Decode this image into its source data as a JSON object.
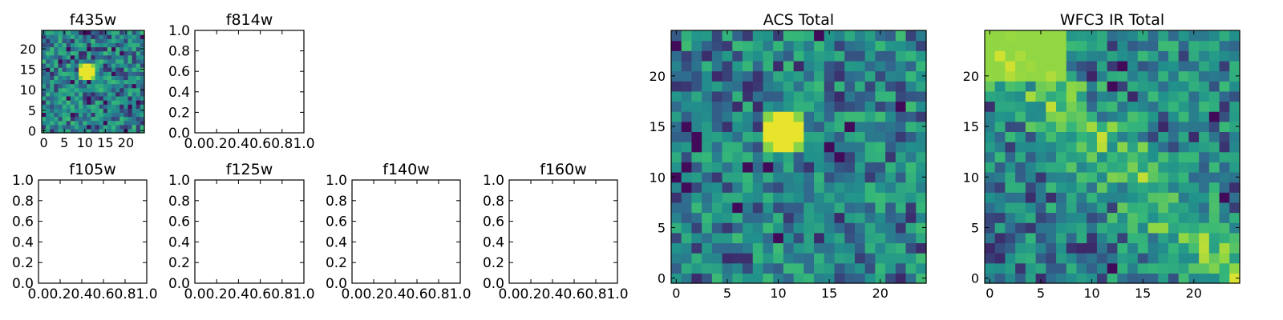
{
  "colormap": [
    "#440154",
    "#31688e",
    "#21918c",
    "#35b779",
    "#90d743",
    "#fde725"
  ],
  "chart_data": [
    {
      "type": "heatmap",
      "title": "f435w",
      "xticks": [
        0,
        5,
        10,
        15,
        20
      ],
      "yticks": [
        0,
        5,
        10,
        15,
        20
      ],
      "grid_size": 25,
      "pattern": "noise-with-central-peak",
      "peak": [
        10.5,
        14.5
      ]
    },
    {
      "type": "empty",
      "title": "f814w",
      "xticks": [
        "0.0",
        "0.2",
        "0.4",
        "0.6",
        "0.8",
        "1.0"
      ],
      "yticks": [
        "0.0",
        "0.2",
        "0.4",
        "0.6",
        "0.8",
        "1.0"
      ]
    },
    {
      "type": "empty",
      "title": "f105w",
      "xticks": [
        "0.0",
        "0.2",
        "0.4",
        "0.6",
        "0.8",
        "1.0"
      ],
      "yticks": [
        "0.0",
        "0.2",
        "0.4",
        "0.6",
        "0.8",
        "1.0"
      ]
    },
    {
      "type": "empty",
      "title": "f125w",
      "xticks": [
        "0.0",
        "0.2",
        "0.4",
        "0.6",
        "0.8",
        "1.0"
      ],
      "yticks": [
        "0.0",
        "0.2",
        "0.4",
        "0.6",
        "0.8",
        "1.0"
      ]
    },
    {
      "type": "empty",
      "title": "f140w",
      "xticks": [
        "0.0",
        "0.2",
        "0.4",
        "0.6",
        "0.8",
        "1.0"
      ],
      "yticks": [
        "0.0",
        "0.2",
        "0.4",
        "0.6",
        "0.8",
        "1.0"
      ]
    },
    {
      "type": "empty",
      "title": "f160w",
      "xticks": [
        "0.0",
        "0.2",
        "0.4",
        "0.6",
        "0.8",
        "1.0"
      ],
      "yticks": [
        "0.0",
        "0.2",
        "0.4",
        "0.6",
        "0.8",
        "1.0"
      ]
    },
    {
      "type": "heatmap",
      "title": "ACS Total",
      "xticks": [
        0,
        5,
        10,
        15,
        20
      ],
      "yticks": [
        0,
        5,
        10,
        15,
        20
      ],
      "grid_size": 25,
      "pattern": "noise-with-central-peak",
      "peak": [
        10.5,
        14.5
      ]
    },
    {
      "type": "heatmap",
      "title": "WFC3 IR Total",
      "xticks": [
        0,
        5,
        10,
        15,
        20
      ],
      "yticks": [
        0,
        5,
        10,
        15,
        20
      ],
      "grid_size": 25,
      "pattern": "noise-with-diagonal-band"
    }
  ]
}
